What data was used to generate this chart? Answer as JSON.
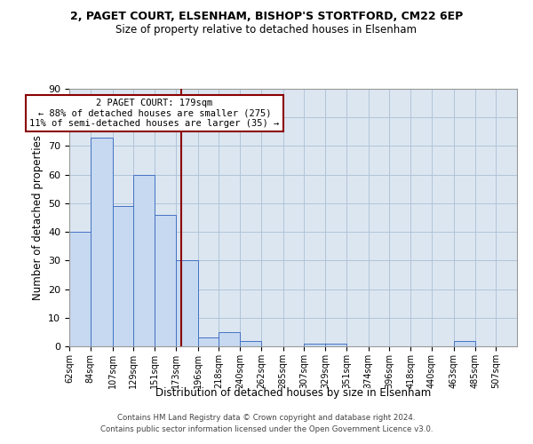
{
  "title_line1": "2, PAGET COURT, ELSENHAM, BISHOP'S STORTFORD, CM22 6EP",
  "title_line2": "Size of property relative to detached houses in Elsenham",
  "xlabel": "Distribution of detached houses by size in Elsenham",
  "ylabel": "Number of detached properties",
  "footer_line1": "Contains HM Land Registry data © Crown copyright and database right 2024.",
  "footer_line2": "Contains public sector information licensed under the Open Government Licence v3.0.",
  "bin_labels": [
    "62sqm",
    "84sqm",
    "107sqm",
    "129sqm",
    "151sqm",
    "173sqm",
    "196sqm",
    "218sqm",
    "240sqm",
    "262sqm",
    "285sqm",
    "307sqm",
    "329sqm",
    "351sqm",
    "374sqm",
    "396sqm",
    "418sqm",
    "440sqm",
    "463sqm",
    "485sqm",
    "507sqm"
  ],
  "bar_values": [
    40,
    73,
    49,
    60,
    46,
    30,
    3,
    5,
    2,
    0,
    0,
    1,
    1,
    0,
    0,
    0,
    0,
    0,
    2,
    0,
    0
  ],
  "bin_edges": [
    62,
    84,
    107,
    129,
    151,
    173,
    196,
    218,
    240,
    262,
    285,
    307,
    329,
    351,
    374,
    396,
    418,
    440,
    463,
    485,
    507,
    529
  ],
  "property_size": 179,
  "bar_color": "#c6d9f0",
  "bar_edge_color": "#4472c4",
  "vline_color": "#8b0000",
  "vline_x": 179,
  "annotation_text_line1": "2 PAGET COURT: 179sqm",
  "annotation_text_line2": "← 88% of detached houses are smaller (275)",
  "annotation_text_line3": "11% of semi-detached houses are larger (35) →",
  "annotation_box_color": "#ffffff",
  "annotation_box_edge_color": "#8b0000",
  "ylim": [
    0,
    90
  ],
  "yticks": [
    0,
    10,
    20,
    30,
    40,
    50,
    60,
    70,
    80,
    90
  ],
  "grid_color": "#b0c4d8",
  "bg_color": "#dce6f1"
}
